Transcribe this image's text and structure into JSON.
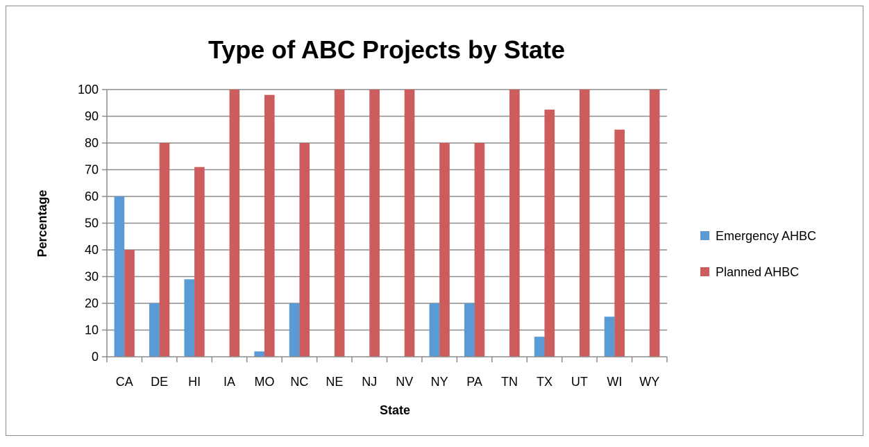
{
  "chart_data": {
    "type": "bar",
    "title": "Type of ABC Projects by State",
    "xlabel": "State",
    "ylabel": "Percentage",
    "ylim": [
      0,
      100
    ],
    "yticks": [
      0,
      10,
      20,
      30,
      40,
      50,
      60,
      70,
      80,
      90,
      100
    ],
    "grid": true,
    "legend_position": "right",
    "categories": [
      "CA",
      "DE",
      "HI",
      "IA",
      "MO",
      "NC",
      "NE",
      "NJ",
      "NV",
      "NY",
      "PA",
      "TN",
      "TX",
      "UT",
      "WI",
      "WY"
    ],
    "series": [
      {
        "name": "Emergency AHBC",
        "color": "#5b9bd5",
        "values": [
          60,
          20,
          29,
          0,
          2,
          20,
          0,
          0,
          0,
          20,
          20,
          0,
          7.5,
          0,
          15,
          0
        ]
      },
      {
        "name": "Planned AHBC",
        "color": "#cd5c5c",
        "values": [
          40,
          80,
          71,
          100,
          98,
          80,
          100,
          100,
          100,
          80,
          80,
          100,
          92.5,
          100,
          85,
          100
        ]
      }
    ]
  }
}
